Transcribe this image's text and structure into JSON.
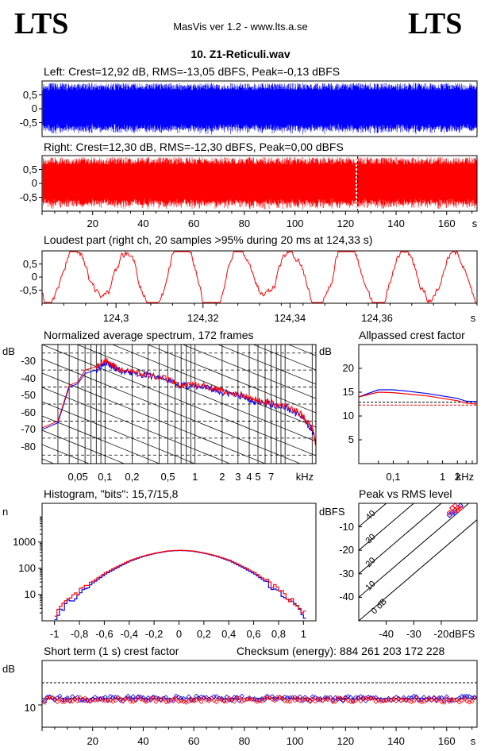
{
  "header": {
    "logo_left": "LTS",
    "logo_right": "LTS",
    "app_title": "MasVis ver 1.2 - www.lts.a.se",
    "file_title": "10. Z1-Reticuli.wav"
  },
  "colors": {
    "left": "#0000ff",
    "right": "#ff0000"
  },
  "waveform_left": {
    "title": "Left: Crest=12,92 dB, RMS=-13,05 dBFS, Peak=-0,13 dBFS",
    "yticks": [
      "0,5",
      "0",
      "-0,5"
    ]
  },
  "waveform_right": {
    "title": "Right: Crest=12,30 dB, RMS=-12,30 dBFS, Peak=0,00 dBFS",
    "yticks": [
      "0,5",
      "0",
      "-0,5"
    ],
    "xticks": [
      "20",
      "40",
      "60",
      "80",
      "100",
      "120",
      "140",
      "160",
      "s"
    ]
  },
  "loudest": {
    "title": "Loudest part (right ch, 20 samples >95% during 20 ms at 124,33 s)",
    "yticks": [
      "0,5",
      "0",
      "-0,5"
    ],
    "xticks": [
      "124,3",
      "124,32",
      "124,34",
      "124,36",
      "s"
    ]
  },
  "spectrum": {
    "title": "Normalized average spectrum, 172 frames",
    "ylabel": "dB",
    "yticks": [
      "-30",
      "-40",
      "-50",
      "-60",
      "-70",
      "-80"
    ],
    "xticks": [
      "0,05",
      "0,1",
      "0,2",
      "0,5",
      "1",
      "2",
      "3",
      "4",
      "5",
      "7",
      "kHz"
    ]
  },
  "crest_ap": {
    "title": "Allpassed crest factor",
    "ylabel": "dB",
    "yticks": [
      "20",
      "15",
      "10",
      "5"
    ],
    "xticks": [
      "0,1",
      "1",
      "2",
      "kHz"
    ]
  },
  "histogram": {
    "title": "Histogram, \"bits\": 15,7/15,8",
    "ylabel": "n",
    "yticks": [
      "1000",
      "100",
      "10"
    ],
    "xticks": [
      "-1",
      "-0,8",
      "-0,6",
      "-0,4",
      "-0,2",
      "0",
      "0,2",
      "0,4",
      "0,6",
      "0,8",
      "1"
    ]
  },
  "peak_rms": {
    "title": "Peak vs RMS level",
    "ylabel": "dBFS",
    "yticks": [
      "-10",
      "-20",
      "-30",
      "-40"
    ],
    "xticks": [
      "-40",
      "-30",
      "-20",
      "dBFS"
    ],
    "diag_labels": [
      "40",
      "30",
      "20",
      "10",
      "0 dB"
    ]
  },
  "short_crest": {
    "title": "Short term (1 s) crest factor",
    "checksum": "Checksum (energy):  884 261 203 172 228",
    "ylabel": "dB",
    "yticks": [
      "10"
    ],
    "xticks": [
      "20",
      "40",
      "60",
      "80",
      "100",
      "120",
      "140",
      "160",
      "s"
    ]
  },
  "chart_data": [
    {
      "type": "line",
      "title": "Left: Crest=12,92 dB, RMS=-13,05 dBFS, Peak=-0,13 dBFS",
      "x_unit": "s",
      "xlim": [
        0,
        172
      ],
      "ylim": [
        -1,
        1
      ],
      "series": [
        {
          "name": "Left",
          "envelope_peak": 0.985
        }
      ]
    },
    {
      "type": "line",
      "title": "Right: Crest=12,30 dB, RMS=-12,30 dBFS, Peak=0,00 dBFS",
      "x_unit": "s",
      "xlim": [
        0,
        172
      ],
      "ylim": [
        -1,
        1
      ],
      "marker_x": 124.33,
      "series": [
        {
          "name": "Right",
          "envelope_peak": 1.0
        }
      ]
    },
    {
      "type": "line",
      "title": "Loudest part (right ch, 20 samples >95% during 20 ms at 124,33 s)",
      "x_unit": "s",
      "xlim": [
        124.283,
        124.383
      ],
      "ylim": [
        -1,
        1
      ],
      "series": [
        {
          "name": "Right",
          "approx_range": [
            -0.95,
            0.95
          ]
        }
      ]
    },
    {
      "type": "line",
      "title": "Normalized average spectrum, 172 frames",
      "ylabel": "dB",
      "xlabel": "kHz",
      "log_x": true,
      "xlim": [
        0.02,
        22
      ],
      "ylim": [
        -90,
        -20
      ],
      "x": [
        0.02,
        0.03,
        0.04,
        0.05,
        0.06,
        0.08,
        0.1,
        0.12,
        0.15,
        0.2,
        0.3,
        0.5,
        0.7,
        1,
        1.5,
        2,
        3,
        4,
        5,
        7,
        10,
        15,
        20,
        22
      ],
      "series": [
        {
          "name": "Left",
          "values": [
            -70,
            -66,
            -45,
            -43,
            -37,
            -35,
            -30,
            -33,
            -36,
            -37,
            -38,
            -41,
            -44,
            -45,
            -46,
            -48,
            -50,
            -52,
            -54,
            -55,
            -57,
            -62,
            -70,
            -78
          ]
        },
        {
          "name": "Right",
          "values": [
            -69,
            -65,
            -44,
            -42,
            -35,
            -33,
            -29,
            -32,
            -35,
            -36,
            -38,
            -40,
            -44,
            -44,
            -45,
            -47,
            -49,
            -51,
            -53,
            -54,
            -56,
            -61,
            -69,
            -79
          ]
        }
      ]
    },
    {
      "type": "line",
      "title": "Allpassed crest factor",
      "ylabel": "dB",
      "xlabel": "kHz",
      "log_x": true,
      "xlim": [
        0.02,
        5
      ],
      "ylim": [
        0,
        25
      ],
      "x": [
        0.02,
        0.05,
        0.1,
        0.2,
        0.5,
        1,
        2,
        3,
        5
      ],
      "series": [
        {
          "name": "Left",
          "values": [
            14,
            15.5,
            15.5,
            15.2,
            14.7,
            14.2,
            13.7,
            13.1,
            13.0
          ]
        },
        {
          "name": "Right",
          "values": [
            14,
            15.0,
            14.9,
            14.6,
            14.2,
            13.7,
            13.2,
            12.7,
            12.5
          ]
        }
      ],
      "reference_lines": [
        12.9,
        12.3
      ]
    },
    {
      "type": "line",
      "title": "Histogram, \"bits\": 15,7/15,8",
      "ylabel": "n",
      "log_y": true,
      "xlim": [
        -1.1,
        1.1
      ],
      "ylim": [
        1,
        30000
      ],
      "x": [
        -1,
        -0.9,
        -0.8,
        -0.7,
        -0.6,
        -0.5,
        -0.4,
        -0.3,
        -0.2,
        -0.1,
        0,
        0.1,
        0.2,
        0.3,
        0.4,
        0.5,
        0.6,
        0.7,
        0.8,
        0.9,
        1
      ],
      "series": [
        {
          "name": "Left",
          "values": [
            1.5,
            5,
            12,
            28,
            60,
            110,
            190,
            280,
            370,
            450,
            480,
            450,
            370,
            280,
            190,
            110,
            60,
            28,
            12,
            5,
            1.5
          ]
        },
        {
          "name": "Right",
          "values": [
            2,
            6,
            14,
            32,
            68,
            120,
            200,
            290,
            380,
            460,
            490,
            460,
            380,
            290,
            200,
            120,
            68,
            32,
            14,
            6,
            2
          ]
        }
      ]
    },
    {
      "type": "scatter",
      "title": "Peak vs RMS level",
      "xlabel": "dBFS",
      "ylabel": "dBFS",
      "xlim": [
        -50,
        -7
      ],
      "ylim": [
        -50,
        0
      ],
      "series": [
        {
          "name": "Left",
          "points": [
            [
              -17,
              -5
            ],
            [
              -16,
              -4
            ],
            [
              -15,
              -3
            ],
            [
              -16,
              -2
            ],
            [
              -14,
              -2
            ],
            [
              -15,
              -4
            ],
            [
              -13,
              -1
            ]
          ]
        },
        {
          "name": "Right",
          "points": [
            [
              -17,
              -4
            ],
            [
              -15,
              -3
            ],
            [
              -16,
              -2
            ],
            [
              -14,
              -2
            ],
            [
              -13,
              -2
            ],
            [
              -15,
              -1
            ],
            [
              -14,
              -3
            ]
          ]
        }
      ]
    },
    {
      "type": "line",
      "title": "Short term (1 s) crest factor",
      "ylabel": "dB",
      "x_unit": "s",
      "xlim": [
        0,
        172
      ],
      "ylim": [
        0,
        30
      ],
      "reference_lines": [
        20,
        13
      ],
      "series": [
        {
          "name": "Left",
          "approx_mean": 12.9
        },
        {
          "name": "Right",
          "approx_mean": 12.3
        }
      ]
    }
  ]
}
